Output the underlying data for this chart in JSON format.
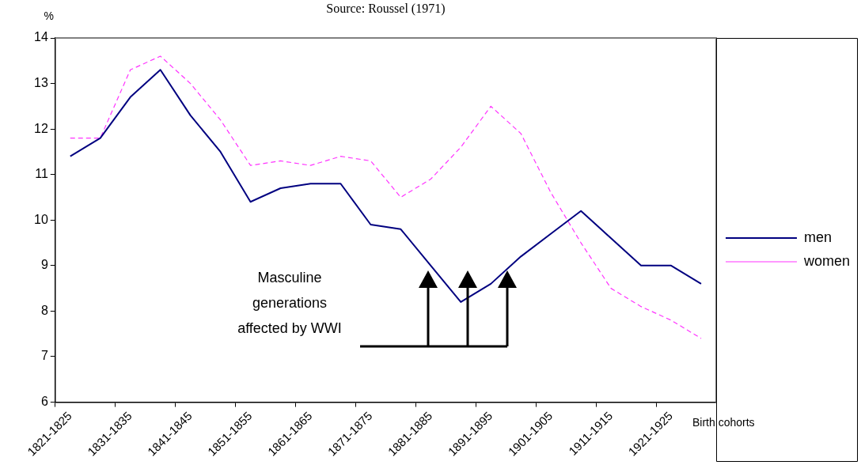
{
  "chart_data": {
    "type": "line",
    "categories": [
      "1821-1825",
      null,
      "1831-1835",
      null,
      "1841-1845",
      null,
      "1851-1855",
      null,
      "1861-1865",
      null,
      "1871-1875",
      null,
      "1881-1885",
      null,
      "1891-1895",
      null,
      "1901-1905",
      null,
      "1911-1915",
      null,
      "1921-1925",
      null
    ],
    "series": [
      {
        "name": "men",
        "color": "#000080",
        "line_style": "solid",
        "values": [
          11.4,
          11.8,
          12.7,
          13.3,
          12.3,
          11.5,
          10.4,
          10.7,
          10.8,
          10.8,
          9.9,
          9.8,
          9.0,
          8.2,
          8.6,
          9.2,
          9.7,
          10.2,
          9.6,
          9.0,
          9.0,
          8.6
        ]
      },
      {
        "name": "women",
        "color": "#ff33ff",
        "line_style": "dashed",
        "values": [
          11.8,
          11.8,
          13.3,
          13.6,
          13.0,
          12.2,
          11.2,
          11.3,
          11.2,
          11.4,
          11.3,
          10.5,
          10.9,
          11.6,
          12.5,
          11.9,
          10.6,
          9.5,
          8.5,
          8.1,
          7.8,
          7.4
        ]
      }
    ],
    "ylim": [
      6,
      14
    ],
    "yticks": [
      6,
      7,
      8,
      9,
      10,
      11,
      12,
      13,
      14
    ],
    "ylabel": "%",
    "xlabel": "Birth cohorts",
    "annotations": [
      "Source: Roussel (1971)",
      "Masculine generations affected by WWI"
    ],
    "legend": "right",
    "grid": false,
    "marker": "none"
  }
}
